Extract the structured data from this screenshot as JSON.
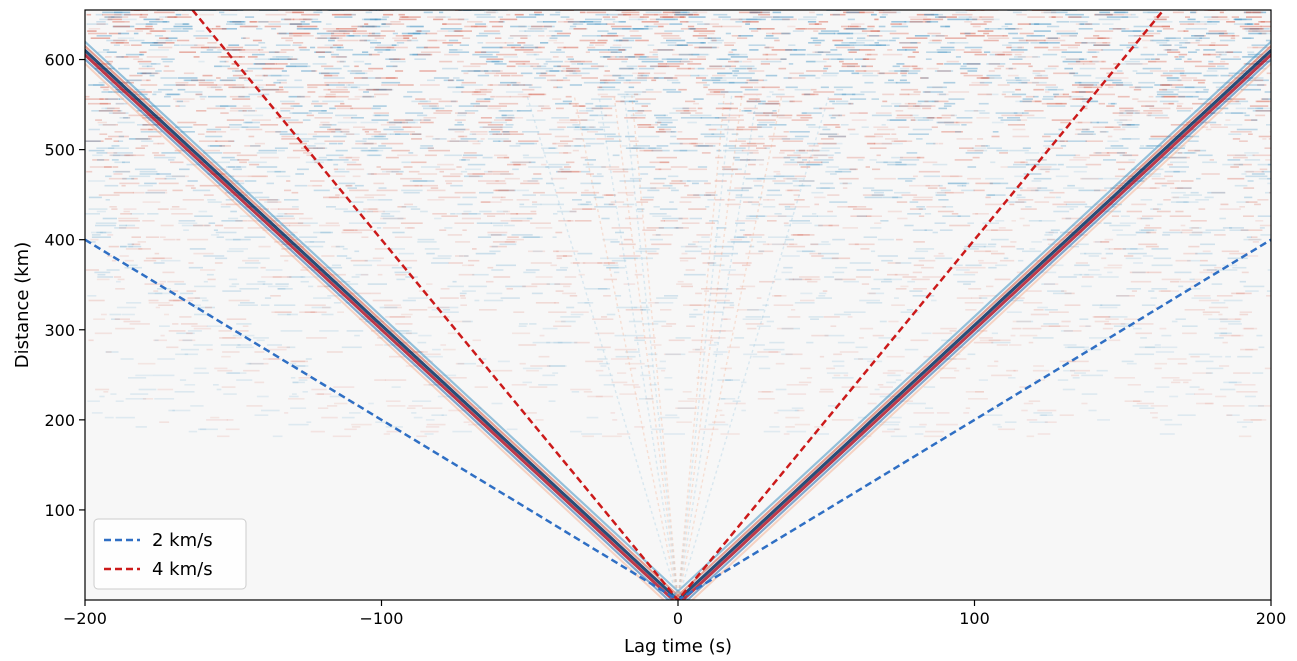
{
  "chart_data": {
    "type": "heatmap",
    "title": "",
    "xlabel": "Lag time (s)",
    "ylabel": "Distance (km)",
    "xlim": [
      -200,
      200
    ],
    "ylim": [
      0,
      655
    ],
    "x_ticks": [
      -200,
      -100,
      0,
      100,
      200
    ],
    "x_tick_labels": [
      "−200",
      "−100",
      "0",
      "100",
      "200"
    ],
    "y_ticks": [
      100,
      200,
      300,
      400,
      500,
      600
    ],
    "y_tick_labels": [
      "100",
      "200",
      "300",
      "400",
      "500",
      "600"
    ],
    "grid": false,
    "colormap": "diverging red-white-blue",
    "legend_position": "lower-left",
    "series": [
      {
        "name": "2 km/s",
        "color": "#2f6fc4",
        "line_style": "dashed",
        "velocity_km_s": 2,
        "points": [
          [
            -200,
            400
          ],
          [
            0,
            0
          ],
          [
            200,
            400
          ]
        ]
      },
      {
        "name": "4 km/s",
        "color": "#cc1a1a",
        "line_style": "dashed",
        "velocity_km_s": 4,
        "points": [
          [
            -163.75,
            655
          ],
          [
            0,
            0
          ],
          [
            163.75,
            655
          ]
        ]
      }
    ]
  }
}
